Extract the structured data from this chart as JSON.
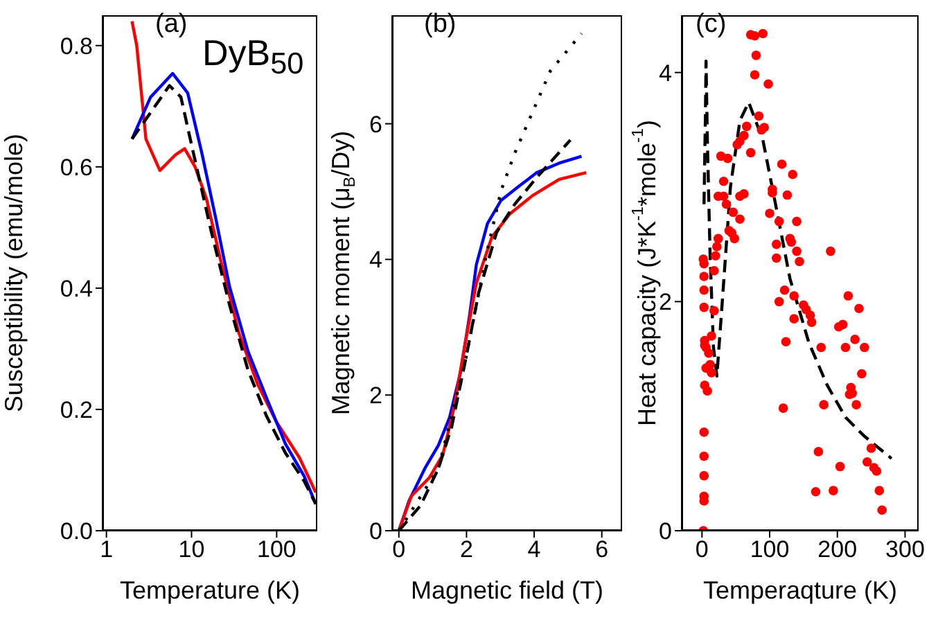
{
  "chart_data": [
    {
      "type": "line",
      "xlabel": "Temperature (K)",
      "ylabel": "Susceptibility (emu/mole)",
      "log": "x",
      "xlim": [
        0.9,
        300
      ],
      "xticks": [
        1,
        10,
        100
      ],
      "ylim": [
        0,
        0.85
      ],
      "yticks": [
        {
          "value": 0,
          "label": "0.0"
        },
        0.2,
        0.4,
        0.6,
        0.8
      ],
      "annotations": [
        "(a)",
        "DyB$_{50}$"
      ],
      "series": [
        {
          "color": "#ff0000",
          "line_style": "solid",
          "x": [
            2,
            2.27,
            2.91,
            4.25,
            6.5,
            8.3,
            11,
            15,
            21.8,
            36,
            59.6,
            98,
            186,
            288
          ],
          "values": [
            0.84,
            0.8,
            0.646,
            0.594,
            0.62,
            0.63,
            0.6,
            0.547,
            0.448,
            0.326,
            0.242,
            0.181,
            0.12,
            0.063
          ]
        },
        {
          "color": "#0000ff",
          "line_style": "solid",
          "x": [
            2,
            3.3,
            6,
            9,
            13.2,
            19.2,
            28,
            46,
            76,
            127,
            210,
            288
          ],
          "values": [
            0.646,
            0.715,
            0.754,
            0.722,
            0.623,
            0.516,
            0.402,
            0.296,
            0.219,
            0.143,
            0.09,
            0.044
          ]
        },
        {
          "color": "#000000",
          "line_style": "dashed",
          "x": [
            2,
            5.5,
            7.5,
            10.2,
            17,
            28,
            46,
            76,
            127,
            210,
            288
          ],
          "values": [
            0.646,
            0.734,
            0.715,
            0.631,
            0.494,
            0.372,
            0.265,
            0.189,
            0.128,
            0.082,
            0.044
          ]
        }
      ]
    },
    {
      "type": "line",
      "xlabel": "Magnetic field (T)",
      "ylabel": "Magnetic moment (μ$_{B}$/Dy)",
      "xlim": [
        -0.2,
        6.6
      ],
      "xticks": [
        0,
        2,
        4,
        6
      ],
      "ylim": [
        0,
        7.6
      ],
      "yticks": [
        0,
        2,
        4,
        6
      ],
      "annotations": [
        "(b)"
      ],
      "series": [
        {
          "color": "#0000ff",
          "line_style": "solid",
          "x": [
            0,
            0.3,
            0.77,
            1.17,
            1.5,
            1.83,
            2.09,
            2.29,
            2.62,
            3.02,
            3.55,
            4.08,
            4.74,
            5.4
          ],
          "values": [
            0,
            0.44,
            0.92,
            1.26,
            1.67,
            2.35,
            3.17,
            3.92,
            4.53,
            4.87,
            5.08,
            5.28,
            5.42,
            5.52
          ]
        },
        {
          "color": "#ff0000",
          "line_style": "solid",
          "x": [
            0,
            0.37,
            0.9,
            1.3,
            1.63,
            1.96,
            2.29,
            2.75,
            3.28,
            3.95,
            4.74,
            5.54
          ],
          "values": [
            0,
            0.51,
            0.78,
            1.12,
            1.81,
            2.76,
            3.65,
            4.33,
            4.67,
            4.94,
            5.18,
            5.28
          ]
        },
        {
          "color": "#000000",
          "line_style": "dashed",
          "x": [
            0,
            0.64,
            1.17,
            1.56,
            1.96,
            2.36,
            2.89,
            3.42,
            4.08,
            5.07
          ],
          "values": [
            0,
            0.37,
            0.92,
            1.53,
            2.49,
            3.51,
            4.4,
            4.81,
            5.21,
            5.76
          ]
        },
        {
          "color": "#000000",
          "line_style": "dotted",
          "x": [
            0,
            1.17,
            1.96,
            2.6,
            3.02,
            3.42,
            3.95,
            4.48,
            5.4
          ],
          "values": [
            0,
            0.92,
            2.49,
            4.1,
            5.01,
            5.56,
            6.17,
            6.78,
            7.33
          ]
        }
      ]
    },
    {
      "type": "scatter",
      "xlabel": "Temperaqture (K)",
      "ylabel": "Heat capacity (J*K$^{-1}$*mole$^{-1}$)",
      "xlim": [
        -30,
        320
      ],
      "xticks": [
        0,
        100,
        200,
        300
      ],
      "ylim": [
        0,
        4.5
      ],
      "yticks": [
        0,
        2,
        4
      ],
      "annotations": [
        "(c)"
      ],
      "series": [
        {
          "color": "#ff0000",
          "marker": "circle",
          "x": [
            2,
            3,
            3,
            3,
            3,
            3,
            4,
            8,
            6,
            6,
            10,
            4,
            4,
            3,
            3,
            3,
            3,
            2,
            12,
            14,
            14,
            18,
            18,
            20,
            22,
            24,
            24,
            28,
            32,
            32,
            36,
            38,
            40,
            44,
            46,
            48,
            52,
            56,
            62,
            56,
            62,
            56,
            72,
            66,
            72,
            78,
            80,
            78,
            84,
            88,
            92,
            90,
            98,
            100,
            104,
            104,
            110,
            110,
            114,
            114,
            118,
            120,
            122,
            124,
            126,
            130,
            132,
            134,
            136,
            136,
            140,
            140,
            144,
            150,
            154,
            160,
            162,
            168,
            172,
            176,
            180,
            190,
            194,
            202,
            204,
            208,
            212,
            216,
            218,
            220,
            222,
            226,
            228,
            232,
            236,
            240,
            244,
            250,
            254,
            258,
            262,
            266
          ],
          "values": [
            0,
            0.26,
            0.3,
            0.48,
            0.65,
            0.86,
            1.27,
            1.22,
            1.42,
            1.6,
            1.55,
            1.62,
            1.66,
            1.95,
            2.1,
            2.22,
            2.33,
            2.37,
            1.45,
            1.38,
            1.7,
            1.92,
            2.27,
            2.4,
            2.48,
            2.55,
            2.92,
            3.27,
            3.05,
            2.92,
            2.85,
            3.25,
            2.62,
            2.6,
            2.78,
            2.55,
            3.37,
            3.4,
            3.45,
            2.92,
            2.94,
            2.72,
            3.3,
            3.53,
            4.33,
            4.32,
            4.15,
            3.98,
            3.62,
            3.5,
            3.52,
            4.34,
            3.9,
            2.77,
            2.98,
            2.95,
            2.5,
            2.38,
            2.7,
            2.0,
            3.2,
            1.07,
            2.1,
            1.65,
            2.93,
            2.55,
            2.52,
            3.11,
            2.05,
            1.85,
            2.44,
            2.7,
            2.35,
            1.97,
            1.93,
            1.88,
            1.82,
            0.34,
            0.69,
            1.6,
            1.1,
            2.44,
            0.35,
            1.78,
            0.56,
            1.8,
            1.6,
            2.05,
            1.19,
            1.25,
            1.2,
            1.67,
            1.1,
            1.94,
            1.37,
            1.6,
            0.6,
            0.72,
            0.55,
            0.52,
            0.35,
            0.18
          ]
        },
        {
          "type": "line",
          "color": "#000000",
          "line_style": "dashed",
          "x": [
            3,
            5,
            6,
            8,
            12,
            17,
            22,
            30,
            42,
            56,
            69,
            90,
            110,
            130,
            158,
            185,
            212,
            239,
            280
          ],
          "values": [
            2.85,
            3.6,
            4.1,
            3.4,
            2.4,
            1.6,
            1.35,
            2.0,
            3.0,
            3.58,
            3.74,
            3.41,
            2.81,
            2.2,
            1.64,
            1.27,
            0.99,
            0.83,
            0.63
          ]
        }
      ]
    }
  ]
}
